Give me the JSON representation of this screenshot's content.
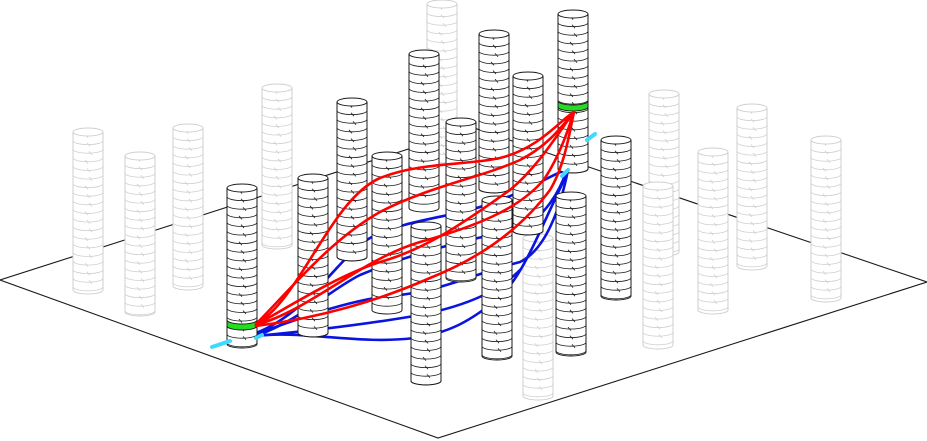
{
  "diagram": {
    "colors": {
      "plane_edge": "#1a1a1a",
      "column_active": "#1a1a1a",
      "column_faded": "#cfcfcf",
      "highlight_ring": "#22dd22",
      "path_primary": "#ff0000",
      "path_secondary": "#0a14e0",
      "port": "#3fd8ff"
    }
  }
}
